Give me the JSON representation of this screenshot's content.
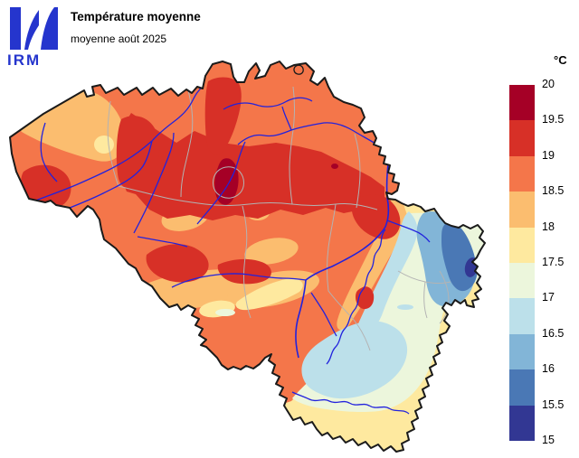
{
  "header": {
    "logo_text": "IRM",
    "title": "Température moyenne",
    "subtitle": "moyenne août 2025"
  },
  "legend": {
    "unit_label": "°C",
    "tick_labels": [
      "20",
      "19.5",
      "19",
      "18.5",
      "18",
      "17.5",
      "17",
      "16.5",
      "16",
      "15.5",
      "15"
    ],
    "band_colors": [
      "#a50026",
      "#d73027",
      "#f4764a",
      "#fbbd6f",
      "#fee99f",
      "#ecf6dc",
      "#bce0ea",
      "#82b5d7",
      "#4a78b5",
      "#323793"
    ],
    "scale": {
      "min": 15,
      "max": 20,
      "step": 0.5,
      "unit": "°C"
    }
  },
  "map": {
    "region": "Belgium",
    "border_color": "#1a1a1a",
    "river_color": "#2222dd",
    "admin_boundary_color": "#b3b3b3",
    "background_color": "#ffffff"
  },
  "branding": {
    "logo_color": "#2535cd"
  }
}
